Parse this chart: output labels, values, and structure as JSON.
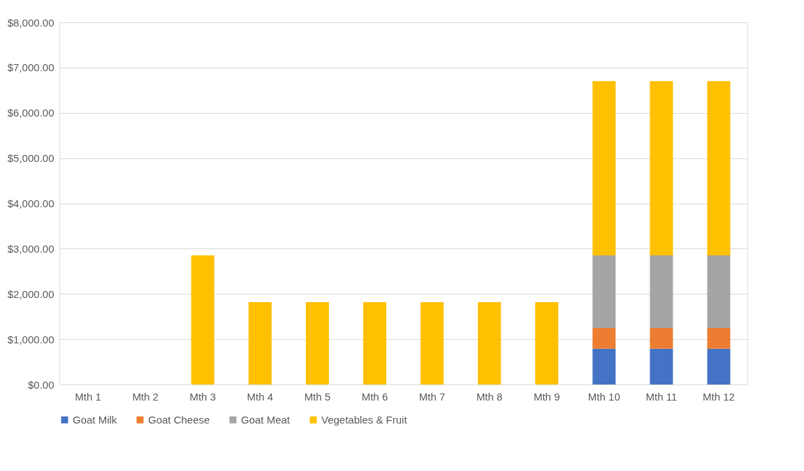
{
  "chart_data": {
    "type": "bar",
    "stacked": true,
    "categories": [
      "Mth 1",
      "Mth 2",
      "Mth 3",
      "Mth 4",
      "Mth 5",
      "Mth 6",
      "Mth 7",
      "Mth 8",
      "Mth 9",
      "Mth 10",
      "Mth 11",
      "Mth 12"
    ],
    "series": [
      {
        "name": "Goat Milk",
        "color": "#4472c4",
        "values": [
          null,
          null,
          null,
          null,
          null,
          null,
          null,
          null,
          null,
          790,
          790,
          790
        ]
      },
      {
        "name": "Goat Cheese",
        "color": "#ed7d31",
        "values": [
          null,
          null,
          null,
          null,
          null,
          null,
          null,
          null,
          null,
          460,
          460,
          460
        ]
      },
      {
        "name": "Goat Meat",
        "color": "#a5a5a5",
        "values": [
          null,
          null,
          null,
          null,
          null,
          null,
          null,
          null,
          null,
          1600,
          1600,
          1600
        ]
      },
      {
        "name": "Vegetables & Fruit",
        "color": "#ffc000",
        "values": [
          null,
          null,
          2850,
          1820,
          1820,
          1820,
          1820,
          1820,
          1820,
          3850,
          3850,
          3850
        ]
      }
    ],
    "ylim": [
      0,
      8000
    ],
    "yticks": [
      {
        "value": 0,
        "label": "$0.00"
      },
      {
        "value": 1000,
        "label": "$1,000.00"
      },
      {
        "value": 2000,
        "label": "$2,000.00"
      },
      {
        "value": 3000,
        "label": "$3,000.00"
      },
      {
        "value": 4000,
        "label": "$4,000.00"
      },
      {
        "value": 5000,
        "label": "$5,000.00"
      },
      {
        "value": 6000,
        "label": "$6,000.00"
      },
      {
        "value": 7000,
        "label": "$7,000.00"
      },
      {
        "value": 8000,
        "label": "$8,000.00"
      }
    ],
    "grid": "y",
    "legend": "bottom"
  }
}
